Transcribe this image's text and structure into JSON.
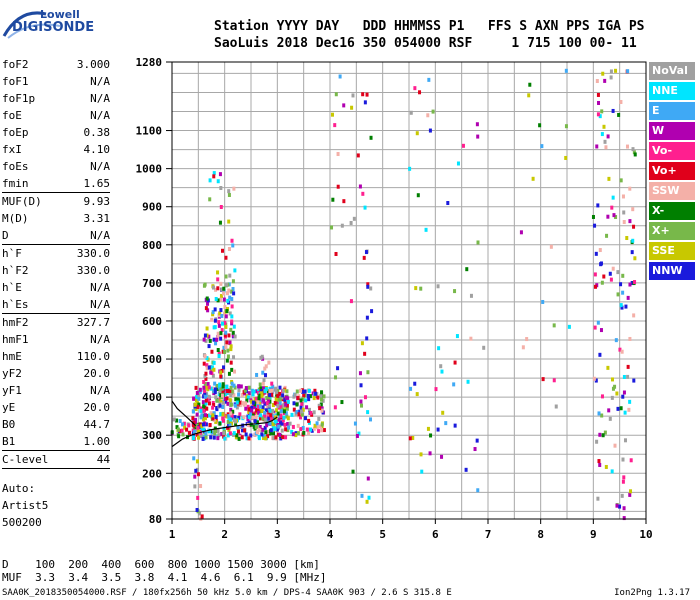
{
  "logo": {
    "top": "Lowell",
    "bottom": "DIGISONDE"
  },
  "header": {
    "line1": "Station YYYY DAY   DDD HHMMSS P1   FFS S AXN PPS IGA PS",
    "line2": "SaoLuis 2018 Dec16 350 054000 RSF     1 715 100 00- 11"
  },
  "params": [
    {
      "name": "foF2",
      "value": "3.000"
    },
    {
      "name": "foF1",
      "value": "N/A"
    },
    {
      "name": "foF1p",
      "value": "N/A"
    },
    {
      "name": "foE",
      "value": "N/A"
    },
    {
      "name": "foEp",
      "value": "0.38"
    },
    {
      "name": "fxI",
      "value": "4.10"
    },
    {
      "name": "foEs",
      "value": "N/A"
    },
    {
      "name": "fmin",
      "value": "1.65",
      "sep": true
    },
    {
      "name": "MUF(D)",
      "value": "9.93"
    },
    {
      "name": "M(D)",
      "value": "3.31"
    },
    {
      "name": "D",
      "value": "N/A",
      "sep": true
    },
    {
      "name": "h`F",
      "value": "330.0"
    },
    {
      "name": "h`F2",
      "value": "330.0"
    },
    {
      "name": "h`E",
      "value": "N/A"
    },
    {
      "name": "h`Es",
      "value": "N/A",
      "sep": true
    },
    {
      "name": "hmF2",
      "value": "327.7"
    },
    {
      "name": "hmF1",
      "value": "N/A"
    },
    {
      "name": "hmE",
      "value": "110.0"
    },
    {
      "name": "yF2",
      "value": "20.0"
    },
    {
      "name": "yF1",
      "value": "N/A"
    },
    {
      "name": "yE",
      "value": "20.0"
    },
    {
      "name": "B0",
      "value": "44.7"
    },
    {
      "name": "B1",
      "value": "1.00",
      "sep": true
    },
    {
      "name": "C-level",
      "value": "44",
      "sep": true
    }
  ],
  "artist": {
    "line1": "Auto:",
    "line2": "Artist5",
    "line3": "500200"
  },
  "mufd": {
    "line1": "D    100  200  400  600  800 1000 1500 3000 [km]",
    "line2": "MUF  3.3  3.4  3.5  3.8  4.1  4.6  6.1  9.9 [MHz]"
  },
  "footer": {
    "left": "SAA0K_2018350054000.RSF / 180fx256h 50 kHz 5.0 km / DPS-4 SAA0K 903 / 2.6 S 315.8 E",
    "right": "Ion2Png 1.3.17"
  },
  "legend": [
    {
      "label": "NoVal",
      "color": "#a0a0a0"
    },
    {
      "label": "NNE",
      "color": "#00e5ff"
    },
    {
      "label": "E",
      "color": "#3fa9f5"
    },
    {
      "label": "W",
      "color": "#b000b0"
    },
    {
      "label": "Vo-",
      "color": "#ff1f8f"
    },
    {
      "label": "Vo+",
      "color": "#e0001b"
    },
    {
      "label": "SSW",
      "color": "#f4b0a8"
    },
    {
      "label": "X-",
      "color": "#007f00"
    },
    {
      "label": "X+",
      "color": "#78b84a"
    },
    {
      "label": "SSE",
      "color": "#c8c800"
    },
    {
      "label": "NNW",
      "color": "#1a1adc"
    }
  ],
  "chart_data": {
    "type": "scatter",
    "xlim": [
      1,
      10
    ],
    "ylim": [
      80,
      1280
    ],
    "x_ticks": [
      1,
      2,
      3,
      4,
      5,
      6,
      7,
      8,
      9,
      10
    ],
    "y_ticks": [
      80,
      200,
      300,
      400,
      500,
      600,
      700,
      800,
      900,
      1000,
      1100,
      1280
    ],
    "grid": true,
    "trace": {
      "color": "#000000",
      "x": [
        1.0,
        1.2,
        1.4,
        1.6,
        1.8,
        2.0,
        2.2,
        2.4,
        2.6,
        2.8,
        2.9,
        3.0
      ],
      "y": [
        270,
        290,
        302,
        310,
        316,
        320,
        324,
        328,
        330,
        333,
        338,
        348
      ]
    },
    "trace_upper": {
      "color": "#000000",
      "x": [
        1.0,
        1.1,
        1.3,
        1.45
      ],
      "y": [
        390,
        370,
        345,
        325
      ]
    },
    "echo_clusters": [
      {
        "x": [
          1.0,
          1.5
        ],
        "y": [
          290,
          345
        ],
        "n": 40
      },
      {
        "x": [
          1.4,
          3.2
        ],
        "y": [
          290,
          430
        ],
        "n": 520
      },
      {
        "x": [
          1.6,
          2.2
        ],
        "y": [
          400,
          700
        ],
        "n": 170
      },
      {
        "x": [
          1.7,
          2.2
        ],
        "y": [
          700,
          1000
        ],
        "n": 24
      },
      {
        "x": [
          2.5,
          3.9
        ],
        "y": [
          300,
          420
        ],
        "n": 180
      },
      {
        "x": [
          2.6,
          2.9
        ],
        "y": [
          420,
          510
        ],
        "n": 14
      },
      {
        "x": [
          1.4,
          1.6
        ],
        "y": [
          80,
          300
        ],
        "n": 14
      },
      {
        "x": [
          4.0,
          4.3
        ],
        "y": [
          300,
          1250
        ],
        "n": 16
      },
      {
        "x": [
          4.4,
          4.8
        ],
        "y": [
          80,
          1260
        ],
        "n": 40
      },
      {
        "x": [
          5.5,
          6.2
        ],
        "y": [
          100,
          1260
        ],
        "n": 32
      },
      {
        "x": [
          6.2,
          7.2
        ],
        "y": [
          150,
          1250
        ],
        "n": 20
      },
      {
        "x": [
          7.6,
          8.6
        ],
        "y": [
          150,
          1260
        ],
        "n": 18
      },
      {
        "x": [
          9.0,
          9.8
        ],
        "y": [
          80,
          1260
        ],
        "n": 130
      }
    ]
  }
}
